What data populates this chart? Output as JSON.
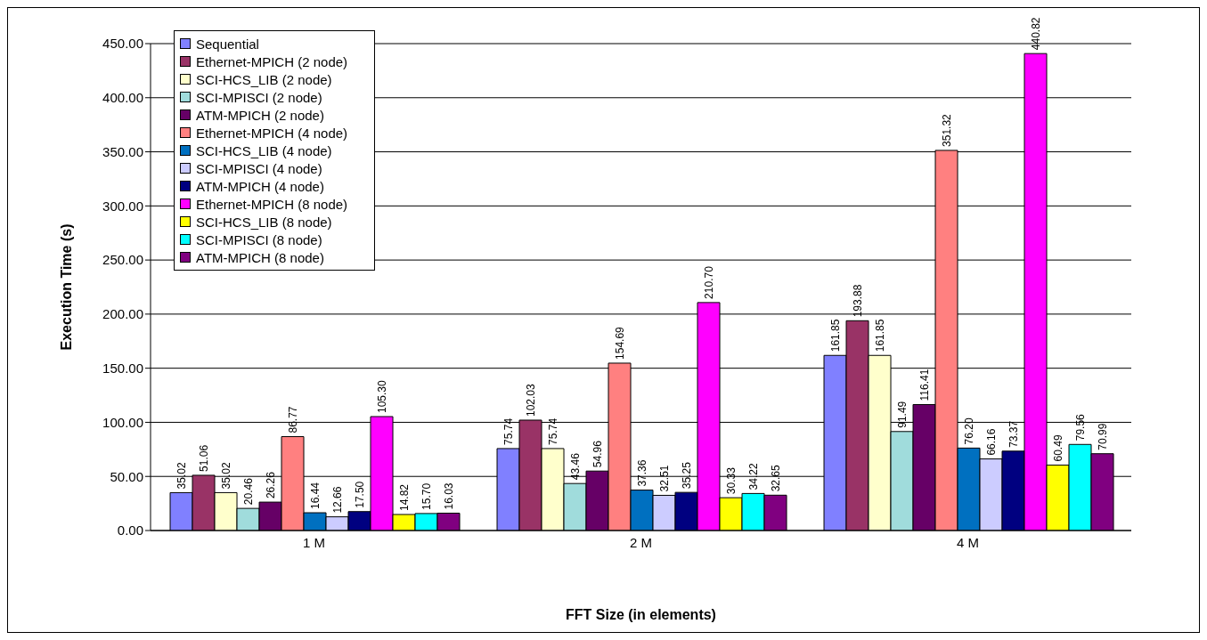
{
  "chart_data": {
    "type": "bar",
    "xlabel": "FFT Size (in elements)",
    "ylabel": "Execution Time (s)",
    "categories": [
      "1 M",
      "2 M",
      "4 M"
    ],
    "ylim": [
      0,
      450
    ],
    "yticks": [
      {
        "value": 0,
        "label": "0.00"
      },
      {
        "value": 50,
        "label": "50.00"
      },
      {
        "value": 100,
        "label": "100.00"
      },
      {
        "value": 150,
        "label": "150.00"
      },
      {
        "value": 200,
        "label": "200.00"
      },
      {
        "value": 250,
        "label": "250.00"
      },
      {
        "value": 300,
        "label": "300.00"
      },
      {
        "value": 350,
        "label": "350.00"
      },
      {
        "value": 400,
        "label": "400.00"
      },
      {
        "value": 450,
        "label": "450.00"
      }
    ],
    "grid": "y",
    "legend": "top left",
    "series": [
      {
        "name": "Sequential",
        "color": "#8080ff",
        "values": [
          35.02,
          75.74,
          161.85
        ],
        "value_labels": [
          "35.02",
          "75.74",
          "161.85"
        ]
      },
      {
        "name": "Ethernet-MPICH (2 node)",
        "color": "#993366",
        "values": [
          51.06,
          102.03,
          193.88
        ],
        "value_labels": [
          "51.06",
          "102.03",
          "193.88"
        ]
      },
      {
        "name": "SCI-HCS_LIB (2 node)",
        "color": "#ffffcc",
        "values": [
          35.02,
          75.74,
          161.85
        ],
        "value_labels": [
          "35.02",
          "75.74",
          "161.85"
        ]
      },
      {
        "name": "SCI-MPISCI (2 node)",
        "color": "#a0dcdc",
        "values": [
          20.46,
          43.46,
          91.49
        ],
        "value_labels": [
          "20.46",
          "43.46",
          "91.49"
        ]
      },
      {
        "name": "ATM-MPICH (2 node)",
        "color": "#660066",
        "values": [
          26.26,
          54.96,
          116.41
        ],
        "value_labels": [
          "26.26",
          "54.96",
          "116.41"
        ]
      },
      {
        "name": "Ethernet-MPICH (4 node)",
        "color": "#ff8080",
        "values": [
          86.77,
          154.69,
          351.32
        ],
        "value_labels": [
          "86.77",
          "154.69",
          "351.32"
        ]
      },
      {
        "name": "SCI-HCS_LIB (4 node)",
        "color": "#0070c0",
        "values": [
          16.44,
          37.36,
          76.2
        ],
        "value_labels": [
          "16.44",
          "37.36",
          "76.20"
        ]
      },
      {
        "name": "SCI-MPISCI (4 node)",
        "color": "#ccccff",
        "values": [
          12.66,
          32.51,
          66.16
        ],
        "value_labels": [
          "12.66",
          "32.51",
          "66.16"
        ]
      },
      {
        "name": "ATM-MPICH (4 node)",
        "color": "#000080",
        "values": [
          17.5,
          35.25,
          73.37
        ],
        "value_labels": [
          "17.50",
          "35.25",
          "73.37"
        ]
      },
      {
        "name": "Ethernet-MPICH (8 node)",
        "color": "#ff00ff",
        "values": [
          105.3,
          210.7,
          440.82
        ],
        "value_labels": [
          "105.30",
          "210.70",
          "440.82"
        ]
      },
      {
        "name": "SCI-HCS_LIB (8 node)",
        "color": "#ffff00",
        "values": [
          14.82,
          30.33,
          60.49
        ],
        "value_labels": [
          "14.82",
          "30.33",
          "60.49"
        ]
      },
      {
        "name": "SCI-MPISCI (8 node)",
        "color": "#00ffff",
        "values": [
          15.7,
          34.22,
          79.56
        ],
        "value_labels": [
          "15.70",
          "34.22",
          "79.56"
        ]
      },
      {
        "name": "ATM-MPICH (8 node)",
        "color": "#800080",
        "values": [
          16.03,
          32.65,
          70.99
        ],
        "value_labels": [
          "16.03",
          "32.65",
          "70.99"
        ]
      }
    ]
  }
}
